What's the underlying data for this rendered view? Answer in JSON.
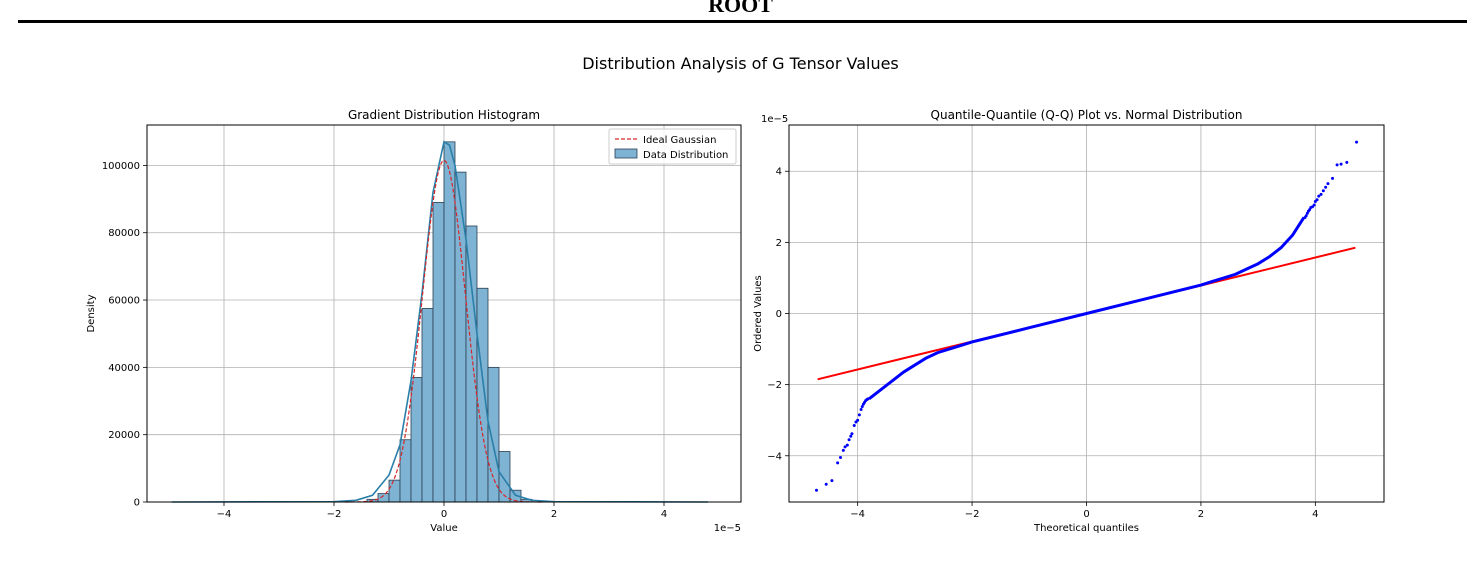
{
  "header": {
    "title": "ROOT"
  },
  "suptitle": "Distribution Analysis of G Tensor Values",
  "chart_data": [
    {
      "type": "bar",
      "title": "Gradient Distribution Histogram",
      "xlabel": "Value",
      "ylabel": "Density",
      "x_offset_label": "1e−5",
      "xlim": [
        -5.4,
        5.4
      ],
      "ylim": [
        0,
        112000
      ],
      "x_scale_exponent": -5,
      "xticks": [
        -4,
        -2,
        0,
        2,
        4
      ],
      "xtick_labels": [
        "−4",
        "−2",
        "0",
        "2",
        "4"
      ],
      "yticks": [
        0,
        20000,
        40000,
        60000,
        80000,
        100000
      ],
      "ytick_labels": [
        "0",
        "20000",
        "40000",
        "60000",
        "80000",
        "100000"
      ],
      "grid": true,
      "legend": {
        "placement": "top-right",
        "entries": [
          "Ideal Gaussian",
          "Data Distribution"
        ]
      },
      "colors": {
        "bars": "#7eb3d4",
        "bar_edge": "#2b3f52",
        "kde": "#2a7fa8",
        "gaussian": "#d62728"
      },
      "series": [
        {
          "name": "Data Distribution",
          "kind": "histogram",
          "bin_width": 0.2,
          "bin_left_edges": [
            -1.4,
            -1.2,
            -1.0,
            -0.8,
            -0.6,
            -0.4,
            -0.2,
            0.0,
            0.2,
            0.4,
            0.6,
            0.8,
            1.0,
            1.2,
            1.4
          ],
          "values": [
            800,
            2500,
            6500,
            18500,
            37000,
            57500,
            89000,
            107000,
            98000,
            82000,
            63500,
            40000,
            15000,
            3500,
            800
          ]
        },
        {
          "name": "Ideal Gaussian",
          "kind": "line",
          "mean": 0.0,
          "std": 0.39,
          "peak": 101500,
          "x_range": [
            -1.8,
            1.8
          ]
        },
        {
          "name": "KDE",
          "kind": "line",
          "x": [
            -4.95,
            -2.0,
            -1.6,
            -1.3,
            -1.0,
            -0.8,
            -0.6,
            -0.4,
            -0.2,
            0.0,
            0.1,
            0.2,
            0.4,
            0.6,
            0.8,
            1.0,
            1.3,
            1.6,
            2.0,
            4.8
          ],
          "values": [
            0,
            100,
            500,
            2000,
            8000,
            17000,
            36000,
            62000,
            92000,
            107000,
            106000,
            100000,
            78000,
            50000,
            24000,
            9000,
            2000,
            500,
            100,
            0
          ]
        }
      ]
    },
    {
      "type": "scatter",
      "title": "Quantile-Quantile (Q-Q) Plot vs. Normal Distribution",
      "xlabel": "Theoretical quantiles",
      "ylabel": "Ordered Values",
      "y_offset_label": "1e−5",
      "xlim": [
        -5.2,
        5.2
      ],
      "ylim": [
        -5.3,
        5.3
      ],
      "y_scale_exponent": -5,
      "xticks": [
        -4,
        -2,
        0,
        2,
        4
      ],
      "xtick_labels": [
        "−4",
        "−2",
        "0",
        "2",
        "4"
      ],
      "yticks": [
        -4,
        -2,
        0,
        2,
        4
      ],
      "ytick_labels": [
        "−4",
        "−2",
        "0",
        "2",
        "4"
      ],
      "grid": true,
      "colors": {
        "points": "#0000ff",
        "line": "#ff0000"
      },
      "reference_line": {
        "x": [
          -4.7,
          4.7
        ],
        "y": [
          -1.85,
          1.85
        ]
      },
      "quantile_curve": {
        "x": [
          -3.8,
          -3.6,
          -3.4,
          -3.2,
          -3.0,
          -2.8,
          -2.6,
          -2.4,
          -2.2,
          -2.0,
          -1.0,
          0.0,
          1.0,
          2.0,
          2.2,
          2.4,
          2.6,
          2.8,
          3.0,
          3.2,
          3.4,
          3.6,
          3.8
        ],
        "y": [
          -2.4,
          -2.15,
          -1.9,
          -1.65,
          -1.45,
          -1.25,
          -1.1,
          -1.0,
          -0.9,
          -0.8,
          -0.4,
          0.0,
          0.4,
          0.8,
          0.9,
          1.0,
          1.1,
          1.25,
          1.4,
          1.6,
          1.85,
          2.2,
          2.7
        ]
      },
      "tail_points": {
        "x": [
          -4.72,
          -4.55,
          -4.45,
          -4.35,
          -4.3,
          -4.25,
          -4.22,
          -4.18,
          -4.15,
          -4.12,
          -4.1,
          -4.06,
          -4.03,
          -4.0,
          -3.97,
          -3.94,
          -3.92,
          -3.9,
          -3.88,
          -3.86,
          -3.84,
          -3.82,
          3.82,
          3.84,
          3.86,
          3.88,
          3.9,
          3.92,
          3.95,
          3.98,
          4.0,
          4.03,
          4.06,
          4.1,
          4.14,
          4.18,
          4.22,
          4.3,
          4.38,
          4.45,
          4.55,
          4.72
        ],
        "y": [
          -4.97,
          -4.8,
          -4.7,
          -4.2,
          -4.05,
          -3.85,
          -3.75,
          -3.7,
          -3.55,
          -3.45,
          -3.38,
          -3.15,
          -3.05,
          -3.0,
          -2.85,
          -2.7,
          -2.62,
          -2.55,
          -2.5,
          -2.45,
          -2.42,
          -2.4,
          2.7,
          2.75,
          2.82,
          2.88,
          2.92,
          2.98,
          3.0,
          3.05,
          3.15,
          3.2,
          3.3,
          3.35,
          3.45,
          3.55,
          3.65,
          3.8,
          4.18,
          4.2,
          4.25,
          4.82
        ]
      }
    }
  ]
}
